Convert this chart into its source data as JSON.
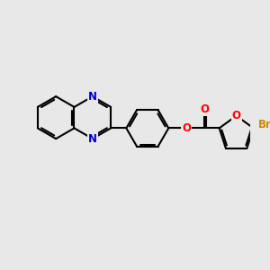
{
  "background_color": "#e8e8e8",
  "bond_color": "#000000",
  "N_color": "#0000cc",
  "O_color": "#ff0000",
  "Br_color": "#cc8800",
  "bond_width": 1.5,
  "font_size_atom": 8.5,
  "figsize": [
    3.0,
    3.0
  ],
  "dpi": 100,
  "xlim": [
    0,
    10
  ],
  "ylim": [
    0,
    10
  ]
}
